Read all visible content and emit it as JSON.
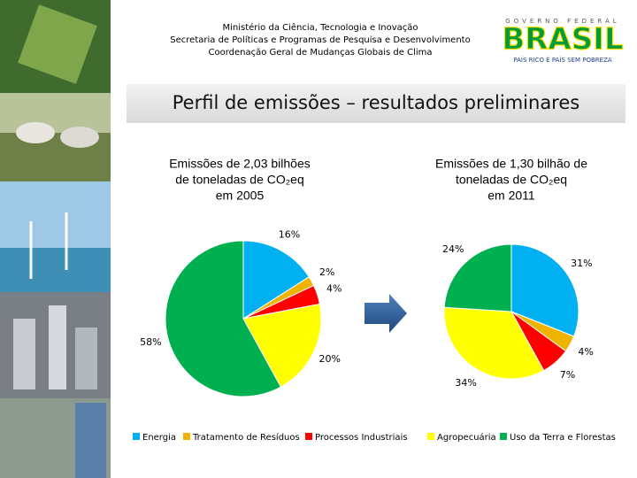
{
  "header": {
    "lines": [
      "Ministério da Ciência, Tecnologia e Inovação",
      "Secretaria de Políticas e Programas de Pesquisa e Desenvolvimento",
      "Coordenação Geral de Mudanças Globais de Clima"
    ]
  },
  "logo": {
    "top": "GOVERNO FEDERAL",
    "name": "BRASIL",
    "tagline": "PAÍS RICO É PAÍS SEM POBREZA"
  },
  "slide_title": "Perfil de emissões – resultados preliminares",
  "chart_data": [
    {
      "type": "pie",
      "title_lines": [
        "Emissões de 2,03 bilhões",
        "de toneladas de CO₂eq",
        "em 2005"
      ],
      "categories": [
        "Energia",
        "Tratamento de Resíduos",
        "Processos Industriais",
        "Agropecuária",
        "Uso da Terra e Florestas"
      ],
      "colors": [
        "#00b0f0",
        "#f0b400",
        "#ff0000",
        "#ffff00",
        "#00b050"
      ],
      "values": [
        16,
        2,
        4,
        20,
        58
      ],
      "value_labels": [
        "16%",
        "2%",
        "4%",
        "20%",
        "58%"
      ]
    },
    {
      "type": "pie",
      "title_lines": [
        "Emissões de 1,30 bilhão de",
        "toneladas de CO₂eq",
        "em 2011"
      ],
      "categories": [
        "Energia",
        "Tratamento de Resíduos",
        "Processos Industriais",
        "Agropecuária",
        "Uso da Terra e Florestas"
      ],
      "colors": [
        "#00b0f0",
        "#f0b400",
        "#ff0000",
        "#ffff00",
        "#00b050"
      ],
      "values": [
        31,
        4,
        7,
        34,
        24
      ],
      "value_labels": [
        "31%",
        "4%",
        "7%",
        "34%",
        "24%"
      ]
    }
  ]
}
